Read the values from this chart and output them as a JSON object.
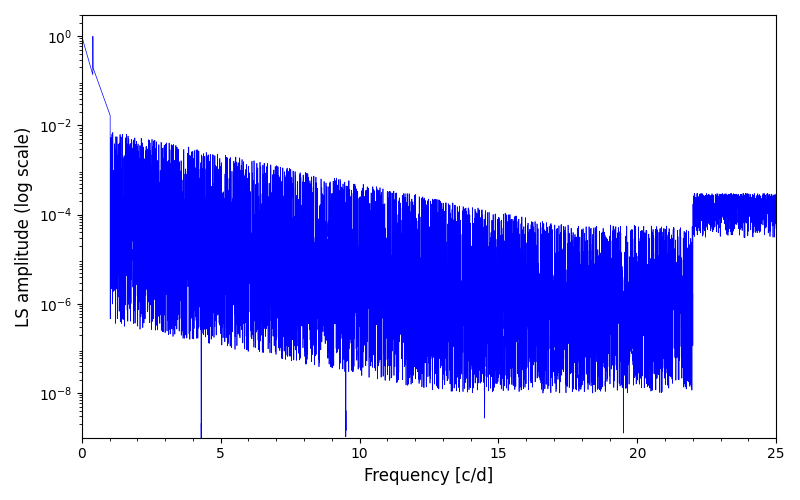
{
  "xlabel": "Frequency [c/d]",
  "ylabel": "LS amplitude (log scale)",
  "xlim": [
    0,
    25
  ],
  "ylim": [
    1e-09,
    3.0
  ],
  "line_color": "#0000ff",
  "line_width": 0.5,
  "background_color": "#ffffff",
  "figsize": [
    8.0,
    5.0
  ],
  "dpi": 100,
  "num_points": 8000,
  "seed": 123,
  "freq_max": 25.0,
  "yticks": [
    1e-08,
    1e-06,
    0.0001,
    0.01,
    1.0
  ]
}
